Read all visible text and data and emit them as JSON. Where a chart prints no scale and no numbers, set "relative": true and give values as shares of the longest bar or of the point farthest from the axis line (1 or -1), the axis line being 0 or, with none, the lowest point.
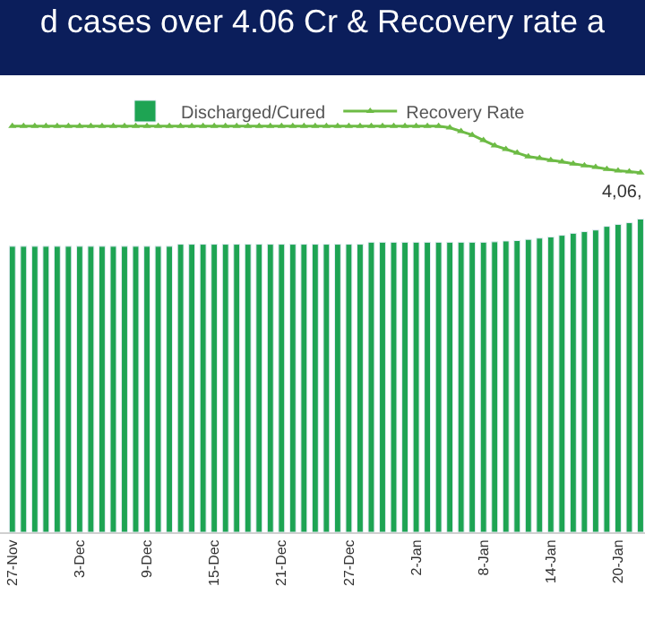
{
  "chart_data": {
    "type": "bar",
    "title": "d cases over 4.06 Cr & Recovery rate a",
    "relative": true,
    "grid": false,
    "legend": "top",
    "annotations": [
      "4,06,"
    ],
    "categories": [
      "27-Nov",
      null,
      null,
      null,
      null,
      null,
      "3-Dec",
      null,
      null,
      null,
      null,
      null,
      "9-Dec",
      null,
      null,
      null,
      null,
      null,
      "15-Dec",
      null,
      null,
      null,
      null,
      null,
      "21-Dec",
      null,
      null,
      null,
      null,
      null,
      "27-Dec",
      null,
      null,
      null,
      null,
      null,
      "2-Jan",
      null,
      null,
      null,
      null,
      null,
      "8-Jan",
      null,
      null,
      null,
      null,
      null,
      "14-Jan",
      null,
      null,
      null,
      null,
      null,
      "20-Jan",
      null,
      null
    ],
    "series": [
      {
        "name": "Discharged/Cured",
        "color": "#1ea453",
        "values": [
          0.704,
          0.704,
          0.704,
          0.704,
          0.704,
          0.704,
          0.704,
          0.704,
          0.704,
          0.704,
          0.704,
          0.704,
          0.704,
          0.704,
          0.704,
          0.709,
          0.709,
          0.709,
          0.709,
          0.709,
          0.709,
          0.709,
          0.709,
          0.709,
          0.709,
          0.709,
          0.709,
          0.709,
          0.709,
          0.709,
          0.709,
          0.709,
          0.714,
          0.714,
          0.714,
          0.714,
          0.714,
          0.714,
          0.714,
          0.714,
          0.714,
          0.714,
          0.714,
          0.715,
          0.717,
          0.718,
          0.721,
          0.724,
          0.727,
          0.731,
          0.736,
          0.74,
          0.744,
          0.753,
          0.758,
          0.762,
          0.771
        ]
      },
      {
        "name": "Recovery Rate",
        "type": "line",
        "color": "#6dbb45",
        "marker": "triangle",
        "line_style": "solid",
        "values": [
          1,
          1,
          1,
          1,
          1,
          1,
          1,
          1,
          1,
          1,
          1,
          1,
          1,
          1,
          1,
          1,
          1,
          1,
          1,
          1,
          1,
          1,
          1,
          1,
          1,
          1,
          1,
          1,
          1,
          1,
          1,
          1,
          1,
          1,
          1,
          1,
          1,
          1,
          1,
          0.996,
          0.987,
          0.978,
          0.965,
          0.952,
          0.943,
          0.934,
          0.925,
          0.921,
          0.916,
          0.912,
          0.907,
          0.903,
          0.899,
          0.894,
          0.89,
          0.888,
          0.885
        ]
      }
    ]
  }
}
